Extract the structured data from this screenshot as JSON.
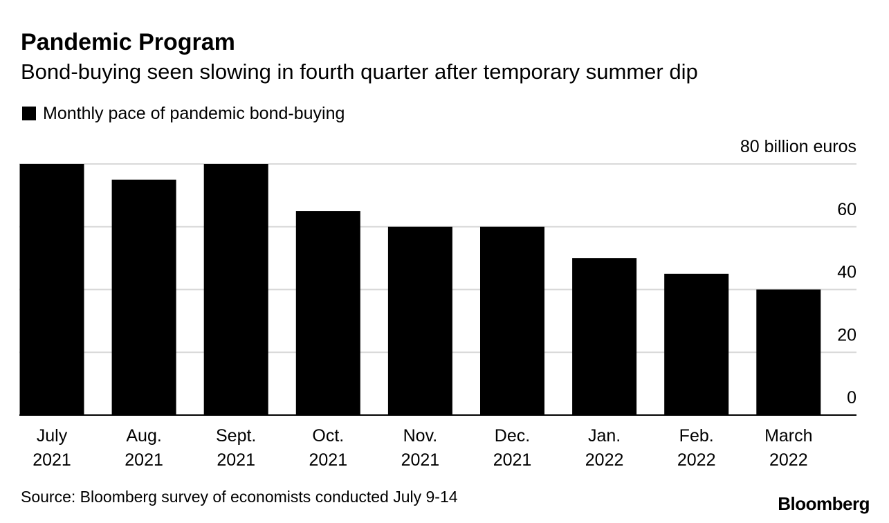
{
  "chart_data": {
    "type": "bar",
    "title": "Pandemic Program",
    "subtitle": "Bond-buying seen slowing in fourth quarter after temporary summer dip",
    "legend": [
      "Monthly pace of pandemic bond-buying"
    ],
    "categories": [
      [
        "July",
        "2021"
      ],
      [
        "Aug.",
        "2021"
      ],
      [
        "Sept.",
        "2021"
      ],
      [
        "Oct.",
        "2021"
      ],
      [
        "Nov.",
        "2021"
      ],
      [
        "Dec.",
        "2021"
      ],
      [
        "Jan.",
        "2022"
      ],
      [
        "Feb.",
        "2022"
      ],
      [
        "March",
        "2022"
      ]
    ],
    "series": [
      {
        "name": "Monthly pace of pandemic bond-buying",
        "values": [
          80,
          75,
          80,
          65,
          60,
          60,
          50,
          45,
          40
        ]
      }
    ],
    "ylim": [
      0,
      80
    ],
    "yticks": [
      0,
      20,
      40,
      60,
      80
    ],
    "ytick_labels": [
      "0",
      "20",
      "40",
      "60",
      "80 billion euros"
    ],
    "ylabel": "billion euros",
    "xlabel": "",
    "grid": true,
    "legend_position": "top-left",
    "source": "Source: Bloomberg survey of economists conducted July 9-14",
    "brand": "Bloomberg",
    "colors": {
      "bar": "#000000",
      "grid": "#d9d9d9",
      "axis": "#000000",
      "text": "#000000"
    }
  }
}
